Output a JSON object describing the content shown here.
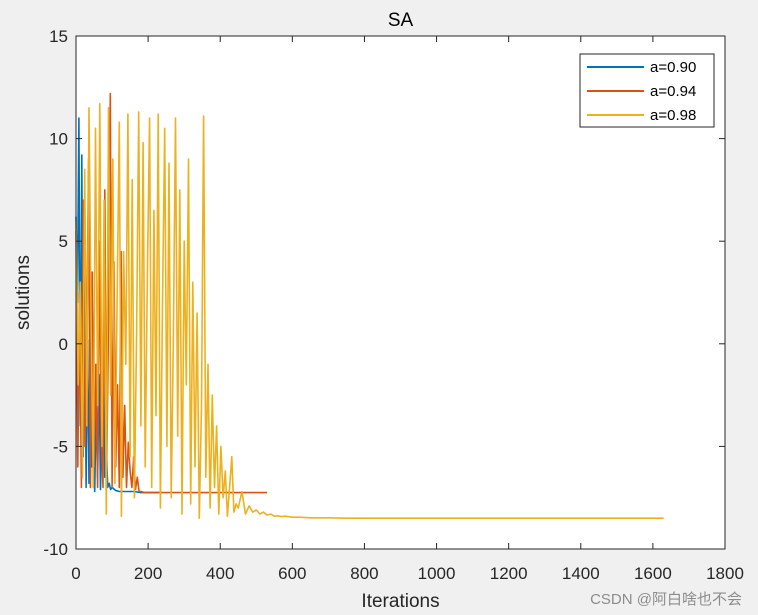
{
  "chart_data": {
    "type": "line",
    "title": "SA",
    "xlabel": "Iterations",
    "ylabel": "solutions",
    "xlim": [
      0,
      1800
    ],
    "ylim": [
      -10,
      15
    ],
    "xticks": [
      0,
      200,
      400,
      600,
      800,
      1000,
      1200,
      1400,
      1600,
      1800
    ],
    "yticks": [
      -10,
      -5,
      0,
      5,
      10,
      15
    ],
    "xtick_labels": [
      "0",
      "200",
      "400",
      "600",
      "800",
      "1000",
      "1200",
      "1400",
      "1600",
      "1800"
    ],
    "ytick_labels": [
      "-10",
      "-5",
      "0",
      "5",
      "10",
      "15"
    ],
    "grid": false,
    "legend_position": "top-right",
    "series": [
      {
        "name": "a=0.90",
        "color": "#0072bd",
        "x": [
          0,
          4,
          8,
          12,
          16,
          20,
          24,
          28,
          32,
          36,
          40,
          44,
          48,
          52,
          56,
          60,
          64,
          68,
          72,
          76,
          80,
          84,
          88,
          92,
          96,
          100,
          110,
          120,
          140,
          160,
          180,
          200,
          230
        ],
        "y": [
          6.2,
          2.0,
          11.0,
          -4.0,
          9.2,
          -5.5,
          3.5,
          -7.0,
          0.2,
          -6.8,
          2.5,
          -6.0,
          -2.0,
          -7.2,
          -3.0,
          -6.5,
          -1.5,
          -7.1,
          -3.5,
          1.0,
          -6.5,
          -5.0,
          -7.0,
          -6.8,
          -7.1,
          -7.0,
          -7.15,
          -7.2,
          -7.2,
          -7.2,
          -7.25,
          -7.25,
          -7.25
        ]
      },
      {
        "name": "a=0.94",
        "color": "#d95319",
        "x": [
          0,
          5,
          10,
          15,
          20,
          25,
          30,
          35,
          40,
          45,
          50,
          55,
          60,
          65,
          70,
          75,
          80,
          85,
          90,
          95,
          100,
          105,
          110,
          115,
          120,
          125,
          130,
          135,
          140,
          145,
          150,
          155,
          160,
          165,
          170,
          175,
          180,
          190,
          200,
          250,
          300,
          350,
          400,
          450,
          500,
          530
        ],
        "y": [
          5.5,
          -6.0,
          2.5,
          -7.0,
          7.0,
          -5.0,
          0.5,
          9.0,
          -7.0,
          3.5,
          -6.0,
          -1.0,
          -7.0,
          5.0,
          -4.5,
          -7.0,
          7.5,
          -6.5,
          1.0,
          12.2,
          -7.0,
          4.0,
          -6.0,
          -2.0,
          -7.0,
          4.5,
          -6.5,
          -3.0,
          -7.0,
          -4.8,
          -6.2,
          -7.0,
          -5.5,
          -7.1,
          -6.5,
          -7.2,
          -7.2,
          -7.25,
          -7.25,
          -7.25,
          -7.25,
          -7.25,
          -7.25,
          -7.25,
          -7.25,
          -7.25
        ]
      },
      {
        "name": "a=0.98",
        "color": "#edb120",
        "x": [
          0,
          6,
          12,
          18,
          24,
          30,
          36,
          42,
          48,
          54,
          60,
          66,
          72,
          78,
          84,
          90,
          96,
          102,
          108,
          114,
          120,
          126,
          132,
          138,
          144,
          150,
          156,
          162,
          168,
          174,
          180,
          186,
          192,
          198,
          204,
          210,
          216,
          222,
          228,
          234,
          240,
          246,
          252,
          258,
          264,
          270,
          276,
          282,
          288,
          294,
          300,
          306,
          312,
          318,
          324,
          330,
          336,
          342,
          348,
          354,
          360,
          366,
          372,
          378,
          384,
          390,
          396,
          402,
          408,
          414,
          420,
          426,
          432,
          438,
          444,
          450,
          460,
          470,
          480,
          490,
          500,
          510,
          520,
          530,
          540,
          550,
          560,
          570,
          580,
          600,
          620,
          650,
          700,
          750,
          800,
          900,
          1000,
          1100,
          1200,
          1300,
          1400,
          1500,
          1630
        ],
        "y": [
          6.0,
          -2.0,
          3.0,
          -6.5,
          8.5,
          -4.0,
          11.5,
          1.0,
          -7.0,
          10.5,
          -3.0,
          11.7,
          -5.0,
          7.0,
          -8.3,
          11.5,
          -2.5,
          9.0,
          -6.8,
          2.0,
          10.8,
          -8.4,
          4.5,
          -1.0,
          11.2,
          -5.5,
          8.0,
          -7.5,
          0.5,
          11.3,
          -4.0,
          9.8,
          -6.0,
          3.5,
          11.0,
          -7.0,
          6.5,
          -3.5,
          11.2,
          -8.0,
          2.0,
          10.5,
          -5.0,
          8.8,
          -7.5,
          0.0,
          11.0,
          -4.5,
          7.5,
          -8.3,
          5.0,
          -2.0,
          9.0,
          -7.8,
          3.0,
          -6.0,
          1.5,
          -8.5,
          -3.0,
          11.1,
          -6.5,
          -1.0,
          -8.0,
          -2.5,
          -7.0,
          -4.0,
          -8.3,
          -5.0,
          -7.5,
          -6.2,
          -8.4,
          -7.0,
          -5.5,
          -8.2,
          -7.8,
          -8.0,
          -7.2,
          -8.3,
          -7.9,
          -8.2,
          -8.1,
          -8.3,
          -8.2,
          -8.35,
          -8.3,
          -8.4,
          -8.38,
          -8.42,
          -8.4,
          -8.45,
          -8.45,
          -8.48,
          -8.48,
          -8.5,
          -8.5,
          -8.5,
          -8.5,
          -8.5,
          -8.5,
          -8.5,
          -8.5,
          -8.5,
          -8.5
        ]
      }
    ]
  },
  "watermark": "CSDN @阿白啥也不会"
}
